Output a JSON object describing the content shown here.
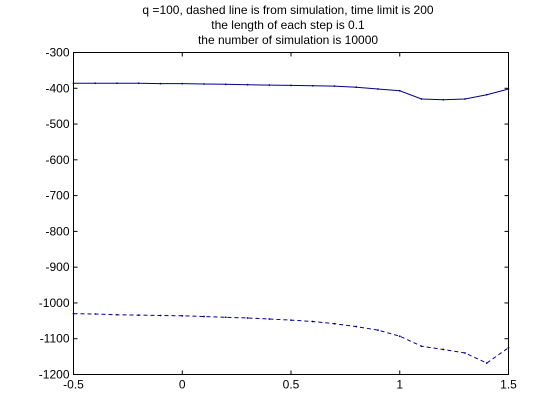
{
  "chart_data": {
    "type": "line",
    "title_lines": [
      "q =100, dashed line is from simulation, time limit is 200",
      "the length of each step is 0.1",
      "the number of simulation is 10000"
    ],
    "xlabel": "",
    "ylabel": "",
    "xlim": [
      -0.5,
      1.5
    ],
    "ylim": [
      -1200,
      -300
    ],
    "xticks": [
      -0.5,
      0,
      0.5,
      1,
      1.5
    ],
    "xtick_labels": [
      "-0.5",
      "0",
      "0.5",
      "1",
      "1.5"
    ],
    "yticks": [
      -300,
      -400,
      -500,
      -600,
      -700,
      -800,
      -900,
      -1000,
      -1100,
      -1200
    ],
    "ytick_labels": [
      "-300",
      "-400",
      "-500",
      "-600",
      "-700",
      "-800",
      "-900",
      "-1000",
      "-1100",
      "-1200"
    ],
    "grid": false,
    "line_color": "#00008b",
    "series": [
      {
        "style": "solid",
        "x": [
          -0.5,
          -0.4,
          -0.3,
          -0.2,
          -0.1,
          0,
          0.1,
          0.2,
          0.3,
          0.4,
          0.5,
          0.6,
          0.7,
          0.8,
          0.9,
          1.0,
          1.1,
          1.2,
          1.3,
          1.4,
          1.5
        ],
        "y": [
          -386,
          -386,
          -386,
          -386,
          -387,
          -387,
          -388,
          -389,
          -390,
          -391,
          -392,
          -393,
          -394,
          -397,
          -402,
          -407,
          -430,
          -432,
          -430,
          -418,
          -402
        ]
      },
      {
        "style": "dashed",
        "x": [
          -0.5,
          -0.4,
          -0.3,
          -0.2,
          -0.1,
          0,
          0.1,
          0.2,
          0.3,
          0.4,
          0.5,
          0.6,
          0.7,
          0.8,
          0.9,
          1.0,
          1.1,
          1.2,
          1.3,
          1.4,
          1.5
        ],
        "y": [
          -1030,
          -1031,
          -1033,
          -1034,
          -1035,
          -1036,
          -1038,
          -1040,
          -1042,
          -1045,
          -1048,
          -1052,
          -1058,
          -1066,
          -1076,
          -1093,
          -1121,
          -1130,
          -1140,
          -1168,
          -1125
        ]
      }
    ]
  }
}
